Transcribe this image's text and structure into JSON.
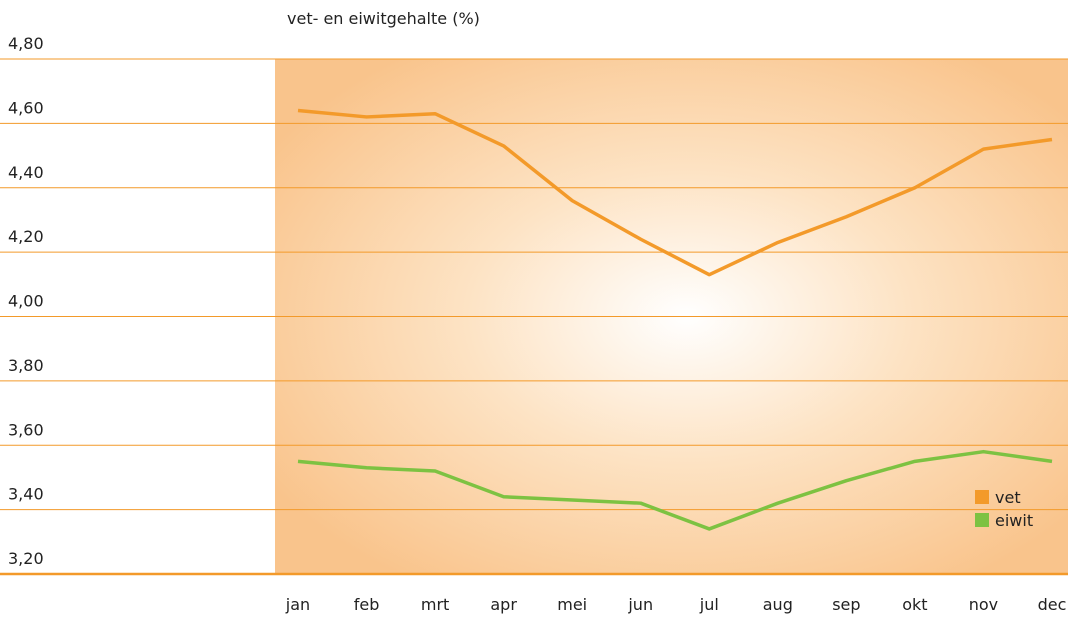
{
  "chart_data": {
    "type": "line",
    "title": "vet- en eiwitgehalte (%)",
    "categories": [
      "jan",
      "feb",
      "mrt",
      "apr",
      "mei",
      "jun",
      "jul",
      "aug",
      "sep",
      "okt",
      "nov",
      "dec"
    ],
    "series": [
      {
        "name": "vet",
        "color": "#f39a2a",
        "values": [
          4.64,
          4.62,
          4.63,
          4.53,
          4.36,
          4.24,
          4.13,
          4.23,
          4.31,
          4.4,
          4.52,
          4.55
        ]
      },
      {
        "name": "eiwit",
        "color": "#7dc242",
        "values": [
          3.55,
          3.53,
          3.52,
          3.44,
          3.43,
          3.42,
          3.34,
          3.42,
          3.49,
          3.55,
          3.58,
          3.55
        ]
      }
    ],
    "ylim": [
      3.2,
      4.8
    ],
    "yticks": [
      {
        "value": 3.2,
        "label": "3,20"
      },
      {
        "value": 3.4,
        "label": "3,40"
      },
      {
        "value": 3.6,
        "label": "3,60"
      },
      {
        "value": 3.8,
        "label": "3,80"
      },
      {
        "value": 4.0,
        "label": "4,00"
      },
      {
        "value": 4.2,
        "label": "4,20"
      },
      {
        "value": 4.4,
        "label": "4,40"
      },
      {
        "value": 4.6,
        "label": "4,60"
      },
      {
        "value": 4.8,
        "label": "4,80"
      }
    ],
    "grid": true,
    "legend": "lower right"
  }
}
